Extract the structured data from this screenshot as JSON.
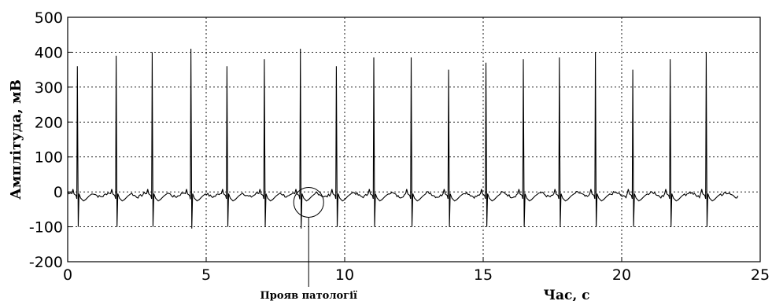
{
  "chart_data": {
    "type": "line",
    "xlabel": "Час, с",
    "ylabel": "Амплітуда, мВ",
    "xlim": [
      0,
      25
    ],
    "ylim": [
      -200,
      500
    ],
    "xticks": [
      0,
      5,
      10,
      15,
      20,
      25
    ],
    "yticks": [
      -200,
      -100,
      0,
      100,
      200,
      300,
      400,
      500
    ],
    "grid": true,
    "annotation": {
      "text": "Прояв патології",
      "x": 8.7,
      "y": -30
    },
    "beats": {
      "times": [
        0.35,
        1.75,
        3.05,
        4.45,
        5.75,
        7.1,
        8.4,
        9.7,
        11.05,
        12.4,
        13.75,
        15.1,
        16.45,
        17.75,
        19.05,
        20.4,
        21.75,
        23.05
      ],
      "peaks": [
        360,
        390,
        400,
        410,
        360,
        380,
        410,
        360,
        385,
        385,
        350,
        370,
        380,
        385,
        400,
        350,
        380,
        400
      ],
      "troughs": [
        -100,
        -100,
        -100,
        -105,
        -100,
        -100,
        -105,
        -100,
        -100,
        -100,
        -100,
        -100,
        -100,
        -100,
        -100,
        -100,
        -100,
        -100
      ]
    },
    "signal_end": 24.2
  }
}
